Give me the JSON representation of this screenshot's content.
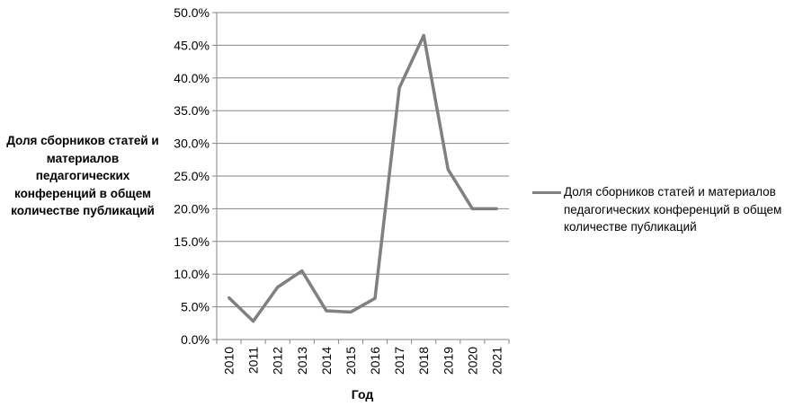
{
  "chart_data": {
    "type": "line",
    "title": "",
    "xlabel": "Год",
    "ylabel": "Доля сборников статей и материалов педагогических конференций в общем количестве публикаций",
    "categories": [
      "2010",
      "2011",
      "2012",
      "2013",
      "2014",
      "2015",
      "2016",
      "2017",
      "2018",
      "2019",
      "2020",
      "2021"
    ],
    "yticks": [
      "0.0%",
      "5.0%",
      "10.0%",
      "15.0%",
      "20.0%",
      "25.0%",
      "30.0%",
      "35.0%",
      "40.0%",
      "45.0%",
      "50.0%"
    ],
    "ylim": [
      0,
      50
    ],
    "grid": true,
    "legend_position": "right",
    "series": [
      {
        "name": "Доля сборников статей и материалов педагогических конференций в общем количестве публикаций",
        "values": [
          6.4,
          2.8,
          8.0,
          10.5,
          4.4,
          4.2,
          6.3,
          38.5,
          46.5,
          26.0,
          20.0,
          20.0
        ],
        "color": "#808080"
      }
    ]
  }
}
